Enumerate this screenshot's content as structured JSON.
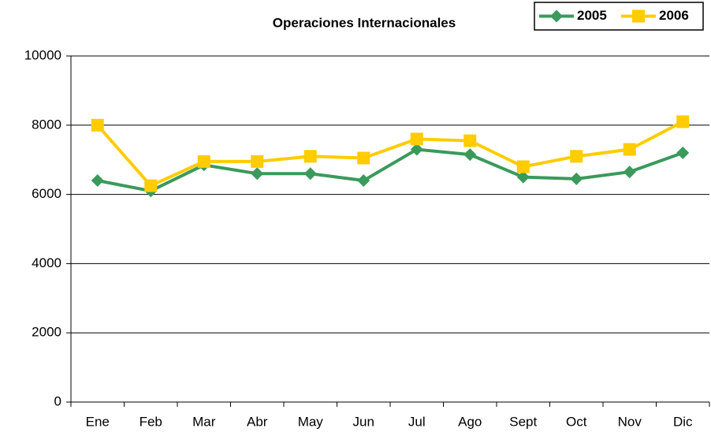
{
  "chart_data": {
    "type": "line",
    "title": "Operaciones Internacionales",
    "categories": [
      "Ene",
      "Feb",
      "Mar",
      "Abr",
      "May",
      "Jun",
      "Jul",
      "Ago",
      "Sept",
      "Oct",
      "Nov",
      "Dic"
    ],
    "series": [
      {
        "name": "2005",
        "color": "#3a9a5b",
        "marker": "diamond",
        "values": [
          6400,
          6100,
          6850,
          6600,
          6600,
          6400,
          7300,
          7150,
          6500,
          6450,
          6650,
          7200
        ]
      },
      {
        "name": "2006",
        "color": "#ffcc00",
        "marker": "square",
        "values": [
          8000,
          6250,
          6950,
          6950,
          7100,
          7050,
          7600,
          7550,
          6800,
          7100,
          7300,
          8100
        ]
      }
    ],
    "ylim": [
      0,
      10000
    ],
    "yticks": [
      0,
      2000,
      4000,
      6000,
      8000,
      10000
    ],
    "grid": true,
    "legend": "top-right"
  }
}
